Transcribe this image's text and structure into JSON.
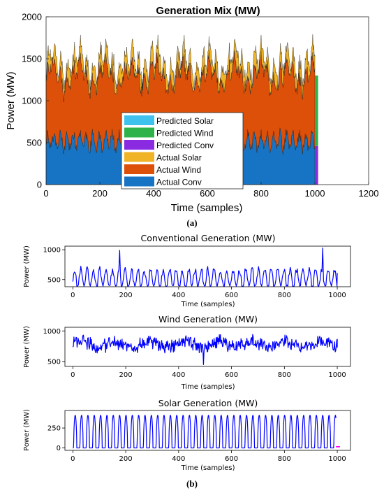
{
  "captions": {
    "a": "(a)",
    "b": "(b)"
  },
  "chart_data": [
    {
      "type": "area",
      "title": "Generation Mix (MW)",
      "xlabel": "Time (samples)",
      "ylabel": "Power (MW)",
      "xlim": [
        0,
        1200
      ],
      "ylim": [
        0,
        2000
      ],
      "xticks": [
        0,
        200,
        400,
        600,
        800,
        1000,
        1200
      ],
      "yticks": [
        0,
        500,
        1000,
        1500,
        2000
      ],
      "stacked": true,
      "grid": false,
      "legend_position": "center",
      "series": [
        {
          "name": "Predicted Solar",
          "color": "#3fc3ee"
        },
        {
          "name": "Predicted Wind",
          "color": "#2eb34a"
        },
        {
          "name": "Predicted Conv",
          "color": "#8a2be2"
        },
        {
          "name": "Actual Solar",
          "color": "#f0b326"
        },
        {
          "name": "Actual Wind",
          "color": "#dd5009"
        },
        {
          "name": "Actual Conv",
          "color": "#1774c4"
        }
      ],
      "actual_range": [
        0,
        1000
      ],
      "predicted_range": [
        1000,
        1012
      ],
      "conv_base": 520,
      "conv_amplitude": 150,
      "wind_mean": 780,
      "wind_amplitude": 120,
      "solar_peak": 400,
      "period_samples": 24,
      "predicted_stack": {
        "conv": 460,
        "wind": 840,
        "solar": 0
      }
    },
    {
      "type": "line",
      "title": "Conventional Generation (MW)",
      "xlabel": "Time (samples)",
      "ylabel": "Power (MW)",
      "xlim": [
        -30,
        1050
      ],
      "ylim": [
        380,
        1060
      ],
      "xticks": [
        0,
        200,
        400,
        600,
        800,
        1000
      ],
      "yticks": [
        500,
        1000
      ],
      "color": "#0000ff",
      "base": 520,
      "amplitude": 150,
      "noise": 110,
      "period_samples": 24,
      "x_end": 1000,
      "last_value": 610
    },
    {
      "type": "line",
      "title": "Wind Generation (MW)",
      "xlabel": "Time (samples)",
      "ylabel": "Power (MW)",
      "xlim": [
        -30,
        1050
      ],
      "ylim": [
        420,
        1060
      ],
      "xticks": [
        0,
        200,
        400,
        600,
        800,
        1000
      ],
      "yticks": [
        500,
        1000
      ],
      "color": "#0000ff",
      "mean": 780,
      "amplitude": 110,
      "noise": 80,
      "x_end": 1000,
      "last_value": 870
    },
    {
      "type": "line",
      "title": "Solar Generation (MW)",
      "xlabel": "Time (samples)",
      "ylabel": "Power (MW)",
      "xlim": [
        -30,
        1050
      ],
      "ylim": [
        -30,
        470
      ],
      "xticks": [
        0,
        200,
        400,
        600,
        800,
        1000
      ],
      "yticks": [
        0,
        250
      ],
      "color": "#0000ff",
      "predicted_color": "#ff00ff",
      "peak": 410,
      "period_samples": 24,
      "x_end": 995,
      "predicted_range": [
        995,
        1010
      ],
      "predicted_value": 15
    }
  ]
}
